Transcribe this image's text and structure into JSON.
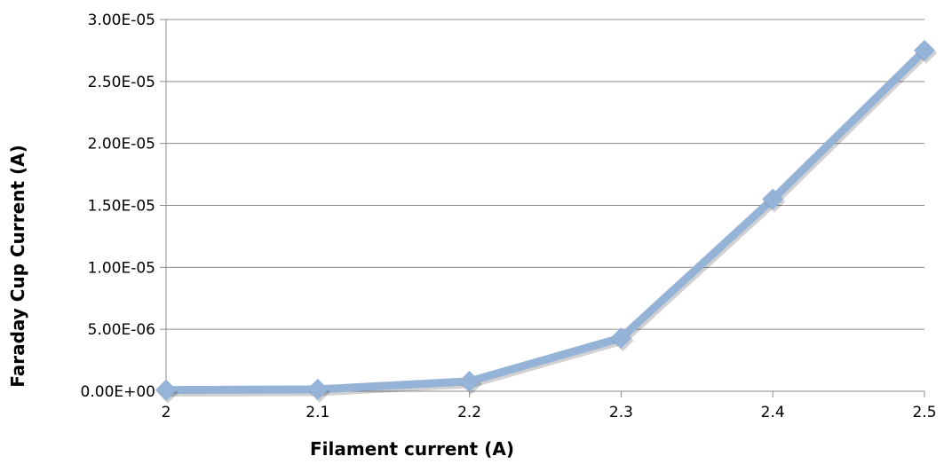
{
  "chart_data": {
    "type": "line",
    "title": "",
    "xlabel": "Filament current (A)",
    "ylabel": "Faraday Cup Current (A)",
    "x": [
      2,
      2.1,
      2.2,
      2.3,
      2.4,
      2.5
    ],
    "x_tick_labels": [
      "2",
      "2.1",
      "2.2",
      "2.3",
      "2.4",
      "2.5"
    ],
    "y_tick_values": [
      0,
      5e-06,
      1e-05,
      1.5e-05,
      2e-05,
      2.5e-05,
      3e-05
    ],
    "y_tick_labels": [
      "0.00E+00",
      "5.00E-06",
      "1.00E-05",
      "1.50E-05",
      "2.00E-05",
      "2.50E-05",
      "3.00E-05"
    ],
    "ylim": [
      0,
      3e-05
    ],
    "xlim": [
      2,
      2.5
    ],
    "grid": true,
    "legend": "none",
    "series": [
      {
        "color": "#95b3d7",
        "marker": "diamond",
        "values": [
          1e-07,
          1.5e-07,
          8e-07,
          4.3e-06,
          1.55e-05,
          2.75e-05
        ]
      }
    ]
  }
}
